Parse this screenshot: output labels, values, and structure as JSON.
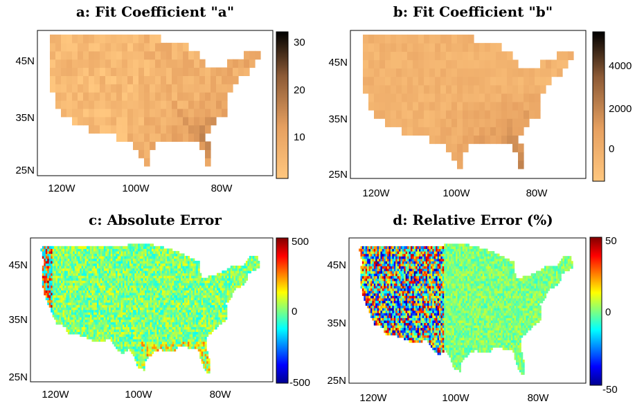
{
  "chart_data": [
    {
      "type": "heatmap",
      "id": "a",
      "title": "a: Fit Coefficient \"a\"",
      "xticks": [
        "120W",
        "100W",
        "80W"
      ],
      "yticks": [
        "25N",
        "35N",
        "45N"
      ],
      "xlim": [
        -127,
        -64
      ],
      "ylim": [
        24,
        50
      ],
      "colorbar": {
        "colormap": "copper-reversed",
        "ticks": [
          10,
          20,
          30
        ],
        "range": [
          2,
          32
        ]
      },
      "pattern": "coarse grid; low values (~5-10) in west/north, higher values (~20-32) in southeast, Gulf coast and Florida"
    },
    {
      "type": "heatmap",
      "id": "b",
      "title": "b: Fit Coefficient \"b\"",
      "xticks": [
        "120W",
        "100W",
        "80W"
      ],
      "yticks": [
        "25N",
        "35N",
        "45N"
      ],
      "xlim": [
        -127,
        -64
      ],
      "ylim": [
        24,
        50
      ],
      "colorbar": {
        "colormap": "copper-reversed",
        "ticks": [
          0,
          2000,
          4000
        ],
        "range": [
          -700,
          5600
        ]
      },
      "pattern": "coarse grid; near 0 over west and north, rising to ~2000-5500 in southeast, Gulf coast and Florida"
    },
    {
      "type": "heatmap",
      "id": "c",
      "title": "c: Absolute Error",
      "xticks": [
        "120W",
        "100W",
        "80W"
      ],
      "yticks": [
        "25N",
        "35N",
        "45N"
      ],
      "xlim": [
        -127,
        -64
      ],
      "ylim": [
        24,
        50
      ],
      "colorbar": {
        "colormap": "jet",
        "ticks": [
          -500,
          0,
          500
        ],
        "range": [
          -500,
          500
        ]
      },
      "pattern": "fine grid; mostly near 0 (green), larger errors along west coast, Gulf coast and Florida"
    },
    {
      "type": "heatmap",
      "id": "d",
      "title": "d: Relative Error (%)",
      "xticks": [
        "120W",
        "100W",
        "80W"
      ],
      "yticks": [
        "25N",
        "35N",
        "45N"
      ],
      "xlim": [
        -127,
        -64
      ],
      "ylim": [
        24,
        50
      ],
      "colorbar": {
        "colormap": "jet",
        "ticks": [
          -50,
          0,
          50
        ],
        "range": [
          -50,
          50
        ]
      },
      "pattern": "fine grid; noisy large errors over western US, near 0 in east"
    }
  ]
}
